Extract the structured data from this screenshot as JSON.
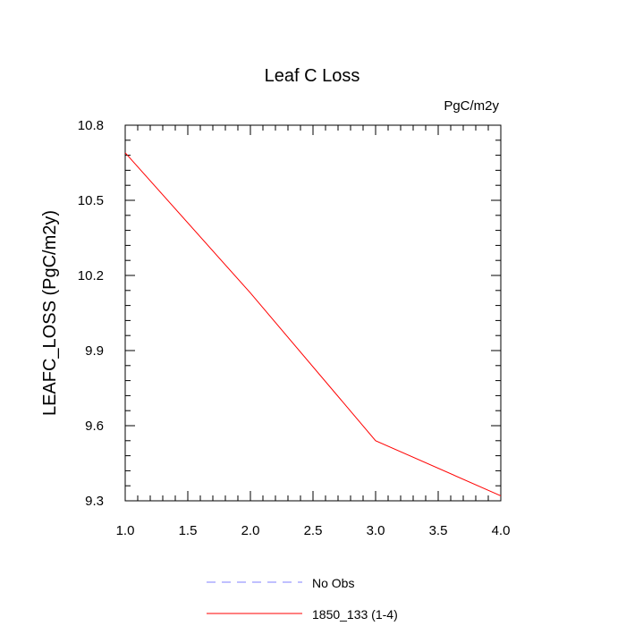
{
  "chart_data": {
    "type": "line",
    "title": "Leaf C Loss",
    "units": "PgC/m2y",
    "xlabel": "",
    "ylabel": "LEAFC_LOSS  (PgC/m2y)",
    "xlim": [
      1.0,
      4.0
    ],
    "ylim": [
      9.3,
      10.8
    ],
    "xticks": [
      1.0,
      1.5,
      2.0,
      2.5,
      3.0,
      3.5,
      4.0
    ],
    "xtick_labels": [
      "1.0",
      "1.5",
      "2.0",
      "2.5",
      "3.0",
      "3.5",
      "4.0"
    ],
    "yticks": [
      9.3,
      9.6,
      9.9,
      10.2,
      10.5,
      10.8
    ],
    "ytick_labels": [
      "9.3",
      "9.6",
      "9.9",
      "10.2",
      "10.5",
      "10.8"
    ],
    "grid": false,
    "legend_position": "bottom-center",
    "series": [
      {
        "name": "No Obs",
        "color": "#8080ff",
        "dash": "dashed",
        "x": [],
        "y": []
      },
      {
        "name": "1850_133 (1-4)",
        "color": "#ff0000",
        "dash": "solid",
        "x": [
          1.0,
          2.0,
          3.0,
          4.0
        ],
        "y": [
          10.69,
          10.13,
          9.54,
          9.32
        ]
      }
    ]
  }
}
